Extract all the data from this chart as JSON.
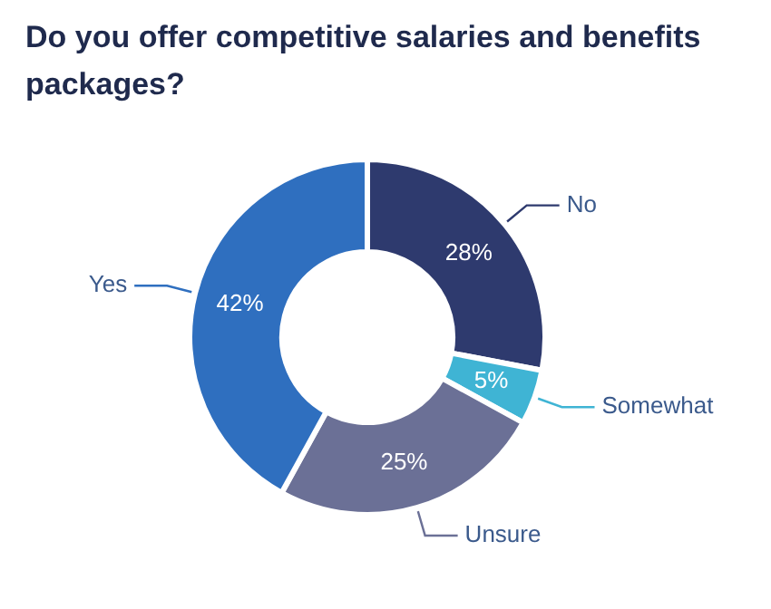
{
  "chart_data": {
    "type": "donut",
    "title": "Do you offer competitive salaries and benefits packages?",
    "categories": [
      "No",
      "Somewhat",
      "Unsure",
      "Yes"
    ],
    "values": [
      28,
      5,
      25,
      42
    ],
    "value_labels": [
      "28%",
      "5%",
      "25%",
      "42%"
    ],
    "colors": [
      "#2e3a6e",
      "#3fb4d4",
      "#6b7096",
      "#2f6fbf"
    ],
    "legend": false
  }
}
